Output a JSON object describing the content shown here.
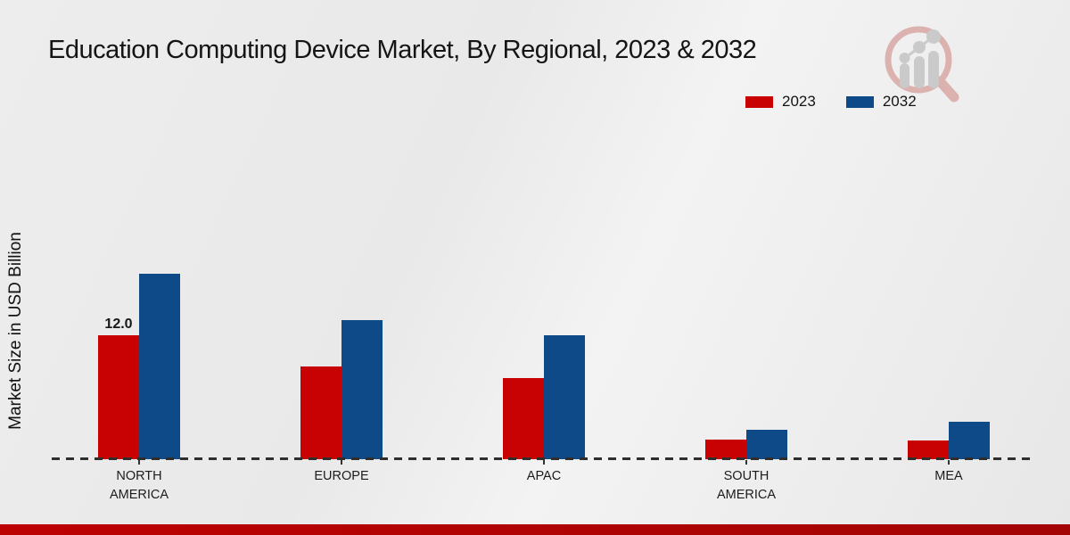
{
  "chart_data": {
    "type": "bar",
    "title": "Education Computing Device Market, By Regional, 2023 & 2032",
    "ylabel": "Market Size in USD Billion",
    "xlabel": "",
    "categories": [
      [
        "NORTH",
        "AMERICA"
      ],
      [
        "EUROPE"
      ],
      [
        "APAC"
      ],
      [
        "SOUTH",
        "AMERICA"
      ],
      [
        "MEA"
      ]
    ],
    "series": [
      {
        "name": "2023",
        "color": "#c80202",
        "values": [
          12.0,
          9.0,
          7.9,
          1.9,
          1.8
        ]
      },
      {
        "name": "2032",
        "color": "#0d4a87",
        "values": [
          18.0,
          13.5,
          12.0,
          2.9,
          3.6
        ]
      }
    ],
    "annotations": [
      {
        "series": 0,
        "category": 0,
        "text": "12.0"
      }
    ],
    "ylim": [
      0,
      18
    ],
    "grid": false,
    "legend_position": "top-right",
    "baseline_style": "dashed"
  },
  "page": {
    "footer_color": "#b30404",
    "logo_icon": "magnifier-bar-chart-watermark"
  }
}
